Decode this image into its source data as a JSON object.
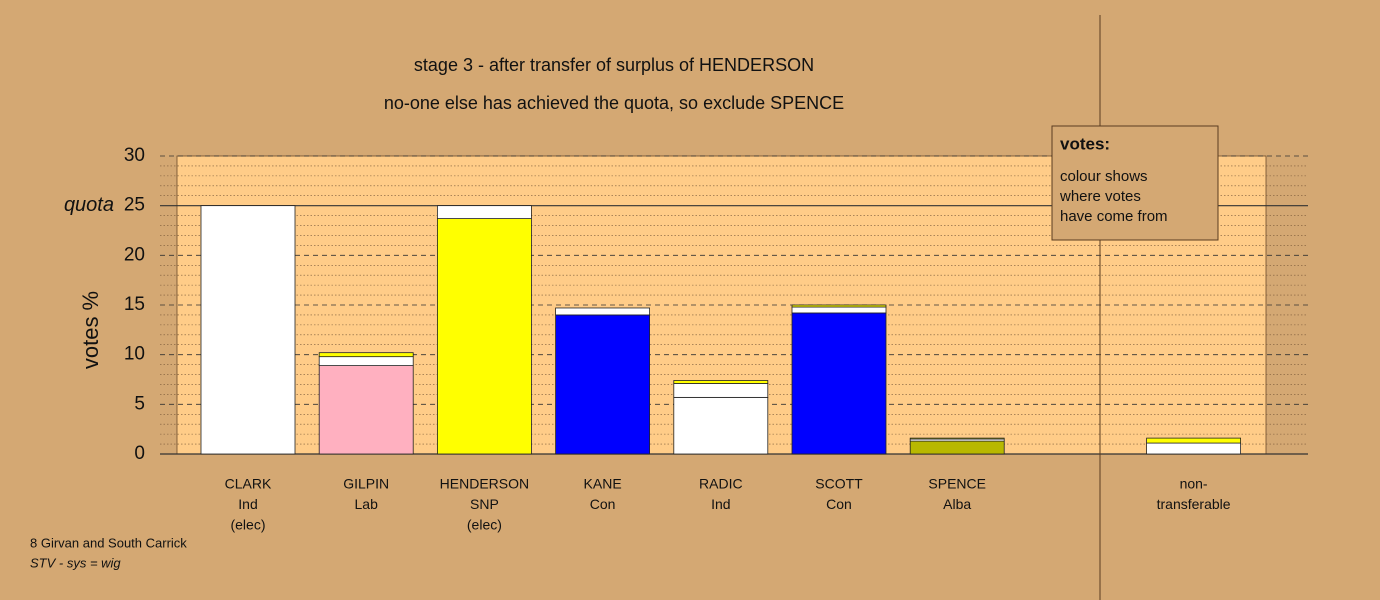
{
  "chart_data": {
    "type": "bar",
    "stacked": true,
    "title": "stage 3 - after transfer of surplus of HENDERSON",
    "subtitle": "no-one else has achieved the quota, so exclude SPENCE",
    "y_label": "votes %",
    "categories": [
      [
        "CLARK",
        "Ind",
        "(elec)"
      ],
      [
        "GILPIN",
        "Lab"
      ],
      [
        "HENDERSON",
        "SNP",
        "(elec)"
      ],
      [
        "KANE",
        "Con"
      ],
      [
        "RADIC",
        "Ind"
      ],
      [
        "SCOTT",
        "Con"
      ],
      [
        "SPENCE",
        "Alba"
      ],
      [
        "non-",
        "transferable"
      ]
    ],
    "series": [
      {
        "colors": [
          "#ffffff",
          "#ffb0c0",
          "#ffff00",
          "#0000ff",
          "#ffffff",
          "#0000ff",
          "#b8b800",
          "#ffffff"
        ],
        "values": [
          25,
          8.9,
          23.7,
          14.0,
          5.7,
          14.2,
          1.3,
          0
        ]
      },
      {
        "color": "#ffffff",
        "values": [
          0,
          0.9,
          1.3,
          0.7,
          1.4,
          0.6,
          0.2,
          1.1
        ]
      },
      {
        "color": "#ffff00",
        "values": [
          0,
          0.4,
          0,
          0,
          0.3,
          0.2,
          0.1,
          0.5
        ]
      }
    ],
    "ylim": [
      0,
      30
    ],
    "yticks": [
      0,
      5,
      10,
      15,
      20,
      25,
      30
    ],
    "quota": 25,
    "quota_label": "quota",
    "legend": {
      "title": "votes:",
      "lines": [
        "colour shows",
        "where votes",
        "have come from"
      ]
    },
    "footer": [
      "8 Girvan and South Carrick",
      "STV - sys = wig"
    ]
  }
}
